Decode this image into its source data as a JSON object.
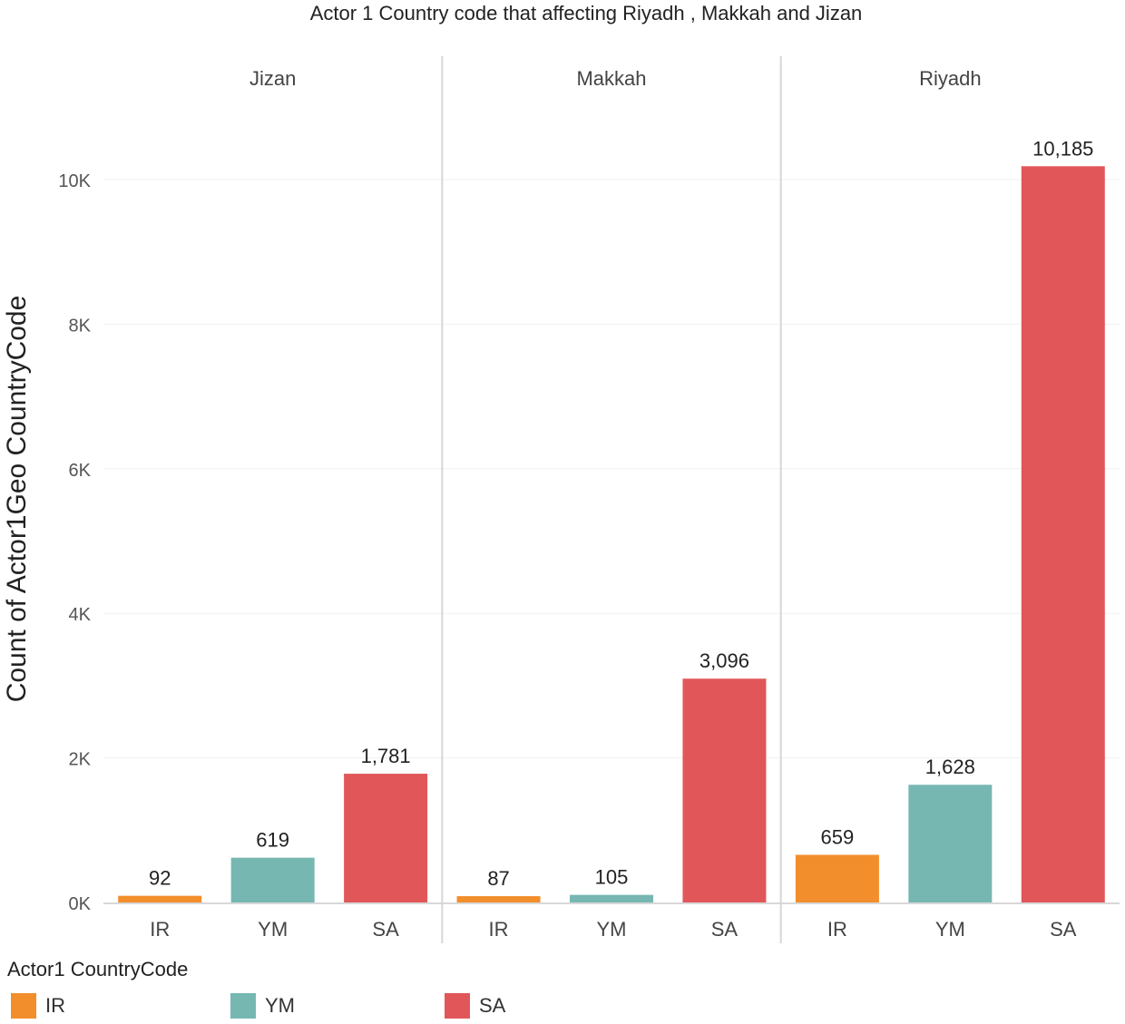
{
  "chart_data": {
    "type": "bar",
    "title": "Actor 1 Country code that affecting Riyadh , Makkah and Jizan",
    "ylabel": "Count of Actor1Geo CountryCode",
    "xlabel": "",
    "ylim": [
      0,
      11000
    ],
    "yticks": [
      {
        "value": 0,
        "label": "0K"
      },
      {
        "value": 2000,
        "label": "2K"
      },
      {
        "value": 4000,
        "label": "4K"
      },
      {
        "value": 6000,
        "label": "6K"
      },
      {
        "value": 8000,
        "label": "8K"
      },
      {
        "value": 10000,
        "label": "10K"
      }
    ],
    "categories": [
      "IR",
      "YM",
      "SA"
    ],
    "panels": [
      {
        "name": "Jizan",
        "values": [
          92,
          619,
          1781
        ],
        "labels": [
          "92",
          "619",
          "1,781"
        ]
      },
      {
        "name": "Makkah",
        "values": [
          87,
          105,
          3096
        ],
        "labels": [
          "87",
          "105",
          "3,096"
        ]
      },
      {
        "name": "Riyadh",
        "values": [
          659,
          1628,
          10185
        ],
        "labels": [
          "659",
          "1,628",
          "10,185"
        ]
      }
    ],
    "colors": {
      "IR": "#f28e2b",
      "YM": "#76b7b2",
      "SA": "#e15759"
    },
    "legend": {
      "title": "Actor1 CountryCode",
      "items": [
        {
          "label": "IR",
          "color": "#f28e2b"
        },
        {
          "label": "YM",
          "color": "#76b7b2"
        },
        {
          "label": "SA",
          "color": "#e15759"
        }
      ]
    }
  }
}
